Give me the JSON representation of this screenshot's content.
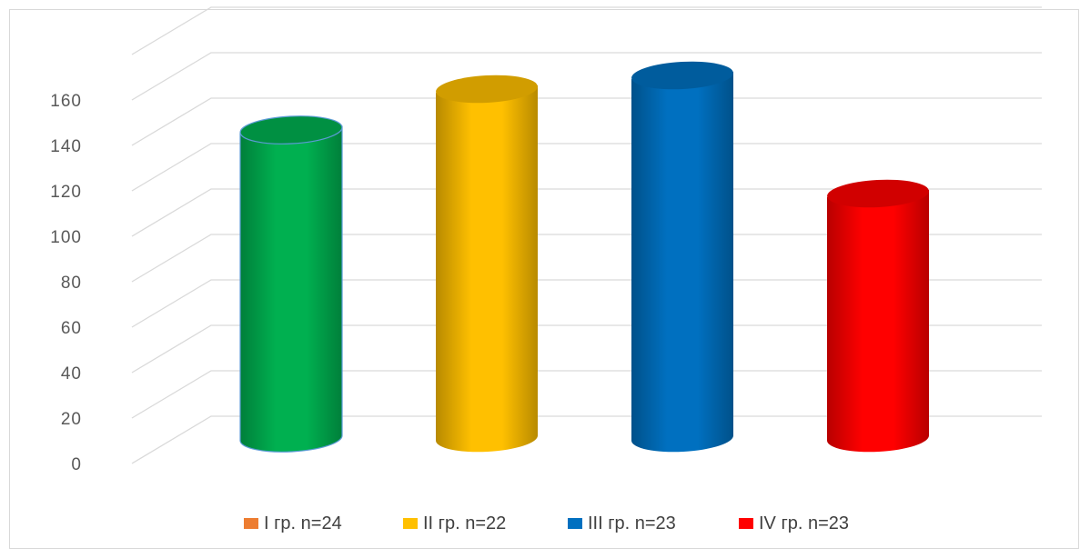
{
  "chart_data": {
    "type": "bar",
    "style": "3d-cylinder",
    "categories": [
      "I гр. n=24",
      "II гр. n=22",
      "III гр. n=23",
      "IV гр. n=23"
    ],
    "values": [
      136,
      154,
      160,
      108
    ],
    "colors": [
      "#00b050",
      "#ffc000",
      "#0070c0",
      "#ff0000"
    ],
    "legend_swatch_colors": [
      "#ed7d31",
      "#ffc000",
      "#0070c0",
      "#ff0000"
    ],
    "y_ticks": [
      "0",
      "20",
      "40",
      "60",
      "80",
      "100",
      "120",
      "140",
      "160"
    ],
    "ylim": [
      0,
      160
    ],
    "grid": true,
    "legend": {
      "position": "bottom",
      "labels": [
        "I гр. n=24",
        "II гр. n=22",
        "III гр. n=23",
        "IV гр. n=23"
      ]
    }
  }
}
